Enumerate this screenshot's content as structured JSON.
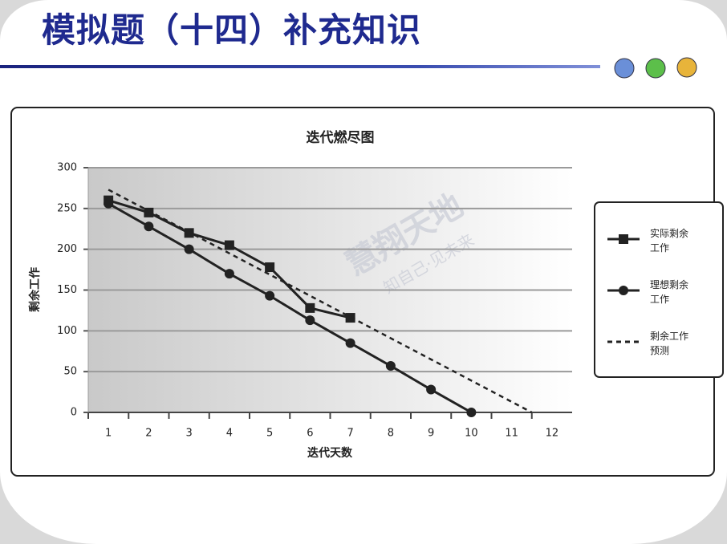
{
  "header": {
    "title": "模拟题（十四）补充知识"
  },
  "watermark": {
    "brand": "慧翔天地",
    "slogan": "知自己·见未来"
  },
  "chart_data": {
    "type": "line",
    "title": "迭代燃尽图",
    "x_label": "迭代天数",
    "y_label": "剩余工作",
    "xlim": [
      0.5,
      12.5
    ],
    "xticks": [
      1,
      2,
      3,
      4,
      5,
      6,
      7,
      8,
      9,
      10,
      11,
      12
    ],
    "ylim": [
      0,
      300
    ],
    "yticks": [
      0,
      50,
      100,
      150,
      200,
      250,
      300
    ],
    "grid": true,
    "legend": "right",
    "series": [
      {
        "name": "实际剩余工作",
        "color": "#222222",
        "marker": "square",
        "line_style": "solid",
        "x": [
          1,
          2,
          3,
          4,
          5,
          6,
          7
        ],
        "values": [
          260,
          245,
          220,
          205,
          178,
          128,
          116
        ]
      },
      {
        "name": "理想剩余工作",
        "color": "#222222",
        "marker": "circle",
        "line_style": "solid",
        "x": [
          1,
          2,
          3,
          4,
          5,
          6,
          7,
          8,
          9,
          10
        ],
        "values": [
          256,
          228,
          200,
          170,
          143,
          113,
          85,
          57,
          28,
          0
        ]
      },
      {
        "name": "剩余工作预测",
        "color": "#222222",
        "marker": "none",
        "line_style": "dashed",
        "x": [
          1,
          11.5
        ],
        "values": [
          273,
          0
        ]
      }
    ]
  }
}
